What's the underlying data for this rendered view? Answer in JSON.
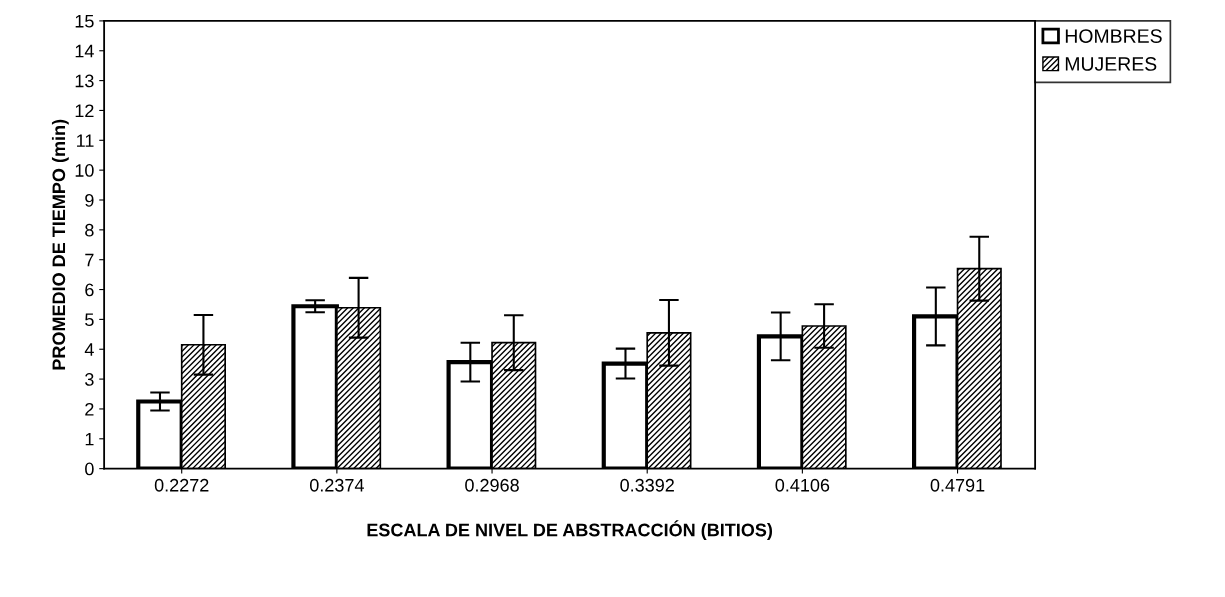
{
  "chart_data": {
    "type": "bar",
    "xlabel": "ESCALA DE NIVEL DE ABSTRACCIÓN (BITIOS)",
    "ylabel": "PROMEDIO DE TIEMPO (min)",
    "categories": [
      "0.2272",
      "0.2374",
      "0.2968",
      "0.3392",
      "0.4106",
      "0.4791"
    ],
    "series": [
      {
        "name": "HOMBRES",
        "color": "#ffffff",
        "values": [
          2.25,
          5.44,
          3.57,
          3.52,
          4.43,
          5.1
        ],
        "errors": [
          0.3,
          0.2,
          0.65,
          0.5,
          0.8,
          0.97
        ]
      },
      {
        "name": "MUJERES",
        "color": "#000000",
        "values": [
          4.15,
          5.39,
          4.22,
          4.55,
          4.78,
          6.7
        ],
        "errors": [
          1.0,
          1.0,
          0.92,
          1.1,
          0.73,
          1.07
        ]
      }
    ],
    "ylim": [
      0,
      15
    ],
    "yticks": [
      0,
      1,
      2,
      3,
      4,
      5,
      6,
      7,
      8,
      9,
      10,
      11,
      12,
      13,
      14,
      15
    ],
    "grid": false,
    "legend": "top right"
  }
}
